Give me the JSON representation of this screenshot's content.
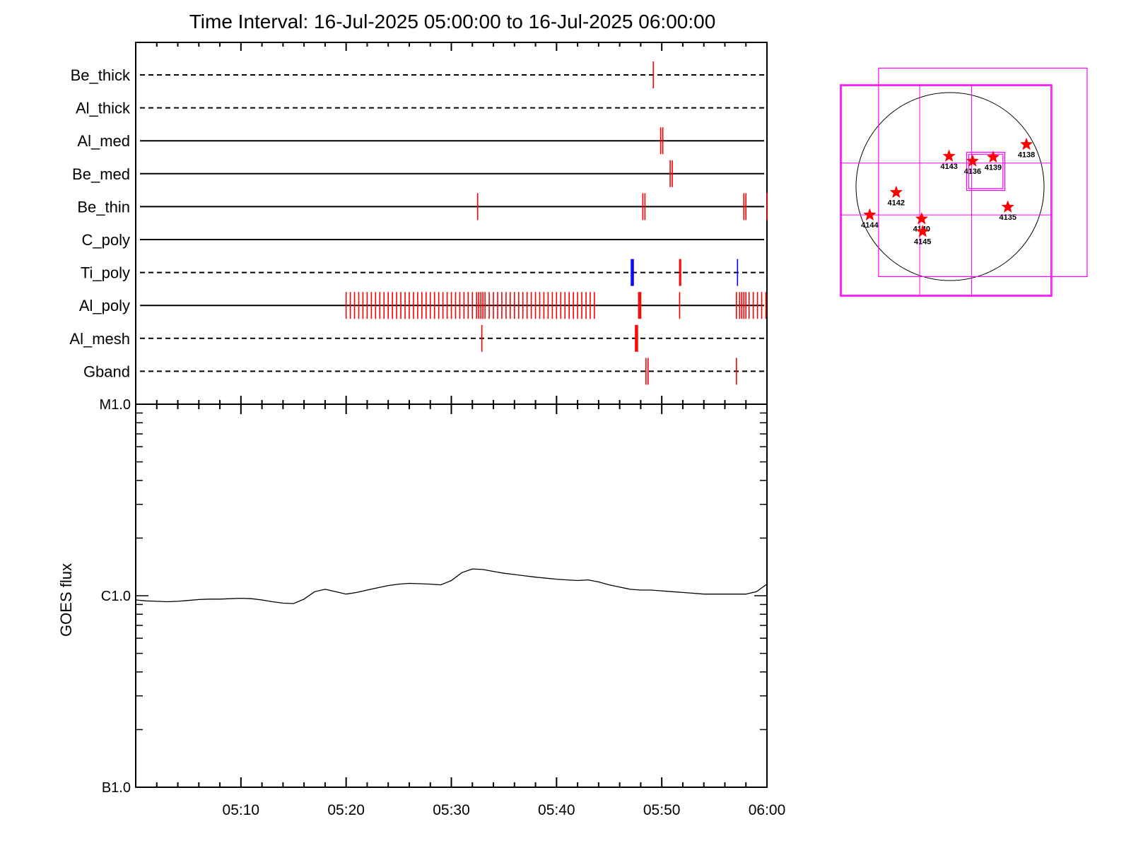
{
  "title": "Time Interval: 16-Jul-2025 05:00:00 to 16-Jul-2025 06:00:00",
  "colors": {
    "axis": "#000000",
    "event": "#ff0000",
    "event_alt": "#0000ff",
    "fov": "#ff00ff",
    "curve": "#000000"
  },
  "chart_data": [
    {
      "type": "timeline",
      "x_unit": "minutes after 05:00",
      "xlim": [
        0,
        60
      ],
      "channels": [
        {
          "name": "Be_thick",
          "line": "dashed",
          "events": [
            49.2
          ]
        },
        {
          "name": "Al_thick",
          "line": "dashed",
          "events": []
        },
        {
          "name": "Al_med",
          "line": "solid",
          "events": [
            49.9,
            50.1
          ]
        },
        {
          "name": "Be_med",
          "line": "solid",
          "events": [
            50.8,
            51.0
          ]
        },
        {
          "name": "Be_thin",
          "line": "solid",
          "events": [
            32.5,
            48.2,
            48.4,
            57.8,
            58.0,
            60.0
          ]
        },
        {
          "name": "C_poly",
          "line": "solid",
          "events": []
        },
        {
          "name": "Ti_poly",
          "line": "dashed",
          "events": [
            51.7,
            51.8
          ],
          "events_alt": [
            47.1,
            47.2,
            47.3,
            57.2
          ]
        },
        {
          "name": "Al_poly",
          "line": "solid",
          "events": [
            20.0,
            20.4,
            20.8,
            21.2,
            21.6,
            22.0,
            22.4,
            22.8,
            23.2,
            23.6,
            24.0,
            24.4,
            24.8,
            25.2,
            25.6,
            26.0,
            26.4,
            26.8,
            27.2,
            27.6,
            28.0,
            28.4,
            28.8,
            29.2,
            29.6,
            30.0,
            30.4,
            30.8,
            31.2,
            31.6,
            32.0,
            32.4,
            32.6,
            32.8,
            33.0,
            33.2,
            33.6,
            34.0,
            34.4,
            34.8,
            35.2,
            35.6,
            36.0,
            36.4,
            36.8,
            37.2,
            37.6,
            38.0,
            38.4,
            38.8,
            39.2,
            39.6,
            40.0,
            40.4,
            40.8,
            41.2,
            41.6,
            42.0,
            42.4,
            42.8,
            43.2,
            43.6,
            47.8,
            47.9,
            48.0,
            51.7,
            57.1,
            57.4,
            57.6,
            57.8,
            58.0,
            58.3,
            58.7,
            59.1,
            59.5,
            59.9
          ]
        },
        {
          "name": "Al_mesh",
          "line": "dashed",
          "events": [
            32.9,
            47.5,
            47.6,
            47.7
          ]
        },
        {
          "name": "Gband",
          "line": "dashed",
          "events": [
            48.5,
            48.7,
            57.1
          ]
        }
      ]
    },
    {
      "type": "line",
      "ylabel": "GOES flux",
      "y_scale": "log",
      "y_ticks": [
        "M1.0",
        "C1.0",
        "B1.0"
      ],
      "ylim": [
        1e-07,
        1e-05
      ],
      "x": [
        0,
        1,
        2,
        3,
        4,
        5,
        6,
        7,
        8,
        9,
        10,
        11,
        12,
        13,
        14,
        15,
        16,
        17,
        18,
        19,
        20,
        21,
        22,
        23,
        24,
        25,
        26,
        27,
        28,
        29,
        30,
        31,
        32,
        33,
        34,
        35,
        36,
        37,
        38,
        39,
        40,
        41,
        42,
        43,
        44,
        45,
        46,
        47,
        48,
        49,
        50,
        51,
        52,
        53,
        54,
        55,
        56,
        57,
        58,
        59,
        60
      ],
      "x_tick_labels": [
        "05:10",
        "05:20",
        "05:30",
        "05:40",
        "05:50",
        "06:00"
      ],
      "series": [
        {
          "values": [
            9.5e-07,
            9.4e-07,
            9.35e-07,
            9.3e-07,
            9.35e-07,
            9.45e-07,
            9.55e-07,
            9.6e-07,
            9.6e-07,
            9.65e-07,
            9.7e-07,
            9.65e-07,
            9.5e-07,
            9.3e-07,
            9.15e-07,
            9.1e-07,
            9.6e-07,
            1.05e-06,
            1.08e-06,
            1.05e-06,
            1.02e-06,
            1.04e-06,
            1.07e-06,
            1.1e-06,
            1.13e-06,
            1.15e-06,
            1.16e-06,
            1.155e-06,
            1.15e-06,
            1.14e-06,
            1.2e-06,
            1.32e-06,
            1.38e-06,
            1.37e-06,
            1.34e-06,
            1.31e-06,
            1.29e-06,
            1.27e-06,
            1.25e-06,
            1.235e-06,
            1.22e-06,
            1.21e-06,
            1.2e-06,
            1.21e-06,
            1.18e-06,
            1.14e-06,
            1.11e-06,
            1.08e-06,
            1.07e-06,
            1.07e-06,
            1.06e-06,
            1.05e-06,
            1.04e-06,
            1.03e-06,
            1.02e-06,
            1.02e-06,
            1.02e-06,
            1.02e-06,
            1.02e-06,
            1.05e-06,
            1.15e-06
          ]
        }
      ]
    },
    {
      "type": "scatter",
      "x_unit": "arcsec",
      "y_unit": "arcsec",
      "xlim": [
        -1200,
        1200
      ],
      "ylim": [
        -1200,
        1200
      ],
      "disk_radius": 960,
      "regions": [
        {
          "label": "4143",
          "x": -10,
          "y": 310
        },
        {
          "label": "4136",
          "x": 230,
          "y": 260
        },
        {
          "label": "4139",
          "x": 440,
          "y": 300
        },
        {
          "label": "4138",
          "x": 780,
          "y": 430
        },
        {
          "label": "4142",
          "x": -550,
          "y": -60
        },
        {
          "label": "4144",
          "x": -820,
          "y": -290
        },
        {
          "label": "4140",
          "x": -290,
          "y": -330
        },
        {
          "label": "4145",
          "x": -280,
          "y": -460
        },
        {
          "label": "4135",
          "x": 590,
          "y": -210
        }
      ],
      "fov_boxes": [
        {
          "x0": -1120,
          "x1": 1040,
          "y0": -1120,
          "y1": 1040
        },
        {
          "x0": -1110,
          "x1": 1030,
          "y0": -1110,
          "y1": 1030
        },
        {
          "x0": -730,
          "x1": 1400,
          "y0": -920,
          "y1": 1210
        },
        {
          "x0": 170,
          "x1": 560,
          "y0": -40,
          "y1": 350
        },
        {
          "x0": 190,
          "x1": 540,
          "y0": -20,
          "y1": 330
        }
      ],
      "grid_x": [
        -1120,
        -310,
        220,
        1040
      ],
      "grid_y": [
        1040,
        240,
        -290,
        -1120
      ]
    }
  ]
}
